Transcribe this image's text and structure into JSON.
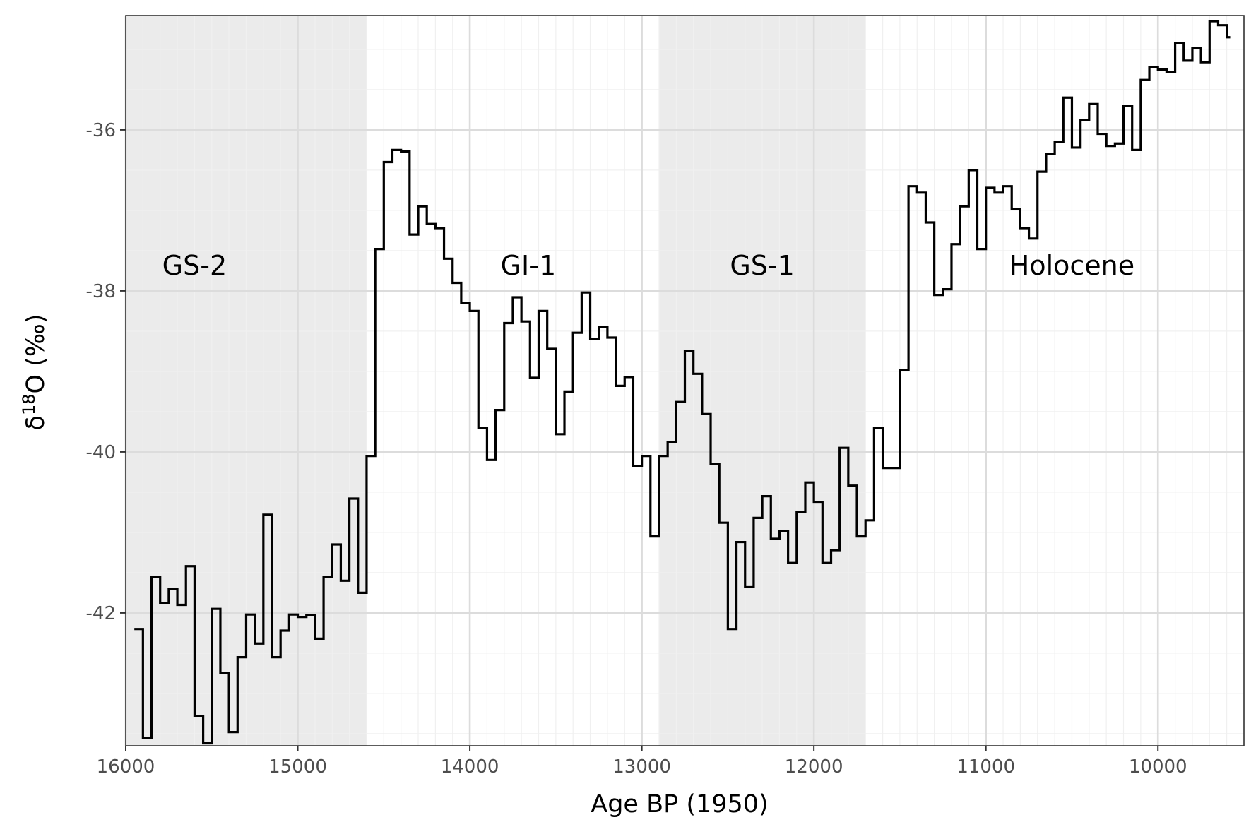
{
  "chart_data": {
    "type": "line",
    "step": true,
    "title": "",
    "xlabel": "Age BP (1950)",
    "ylabel_base": "δ",
    "ylabel_sup": "18",
    "ylabel_rest": "O (‰)",
    "xlim": [
      16000,
      9500
    ],
    "ylim": [
      -43.65,
      -34.58
    ],
    "x_reversed": true,
    "grid": true,
    "x_ticks": [
      16000,
      15000,
      14000,
      13000,
      12000,
      11000,
      10000
    ],
    "x_tick_labels": [
      "16000",
      "15000",
      "14000",
      "13000",
      "12000",
      "11000",
      "10000"
    ],
    "y_ticks": [
      -36,
      -38,
      -40,
      -42
    ],
    "y_tick_labels": [
      "-36",
      "-38",
      "-40",
      "-42"
    ],
    "colors": {
      "line": "#000000",
      "shade": "#ebebeb",
      "grid_major": "#dcdcdc",
      "grid_minor": "#f0f0f0"
    },
    "shaded_periods": [
      {
        "label": "GS-2",
        "start": 16000,
        "end": 14600,
        "shaded": true,
        "label_x": 15600,
        "label_y": -37.8
      },
      {
        "label": "GI-1",
        "start": 14600,
        "end": 12900,
        "shaded": false,
        "label_x": 13660,
        "label_y": -37.8
      },
      {
        "label": "GS-1",
        "start": 12900,
        "end": 11700,
        "shaded": true,
        "label_x": 12300,
        "label_y": -37.8
      },
      {
        "label": "Holocene",
        "start": 11700,
        "end": 9500,
        "shaded": false,
        "label_x": 10500,
        "label_y": -37.8
      }
    ],
    "series": [
      {
        "x": [
          15950,
          15900,
          15850,
          15800,
          15750,
          15700,
          15650,
          15600,
          15550,
          15500,
          15450,
          15400,
          15350,
          15300,
          15250,
          15200,
          15150,
          15100,
          15050,
          15000,
          14950,
          14900,
          14850,
          14800,
          14750,
          14700,
          14650,
          14600,
          14550,
          14500,
          14450,
          14400,
          14350,
          14300,
          14250,
          14200,
          14150,
          14100,
          14050,
          14000,
          13950,
          13900,
          13850,
          13800,
          13750,
          13700,
          13650,
          13600,
          13550,
          13500,
          13450,
          13400,
          13350,
          13300,
          13250,
          13200,
          13150,
          13100,
          13050,
          13000,
          12950,
          12900,
          12850,
          12800,
          12750,
          12700,
          12650,
          12600,
          12550,
          12500,
          12450,
          12400,
          12350,
          12300,
          12250,
          12200,
          12150,
          12100,
          12050,
          12000,
          11950,
          11900,
          11850,
          11800,
          11750,
          11700,
          11650,
          11600,
          11550,
          11500,
          11450,
          11400,
          11350,
          11300,
          11250,
          11200,
          11150,
          11100,
          11050,
          11000,
          10950,
          10900,
          10850,
          10800,
          10750,
          10700,
          10650,
          10600,
          10550,
          10500,
          10450,
          10400,
          10350,
          10300,
          10250,
          10200,
          10150,
          10100,
          10050,
          10000,
          9950,
          9900,
          9850,
          9800,
          9750,
          9700,
          9650,
          9600
        ],
        "y": [
          -42.2,
          -43.55,
          -41.55,
          -41.88,
          -41.7,
          -41.9,
          -41.42,
          -43.28,
          -43.62,
          -41.95,
          -42.75,
          -43.48,
          -42.55,
          -42.02,
          -42.38,
          -40.78,
          -42.55,
          -42.22,
          -42.02,
          -42.05,
          -42.03,
          -42.32,
          -41.55,
          -41.15,
          -41.6,
          -40.58,
          -41.75,
          -40.05,
          -37.48,
          -36.4,
          -36.25,
          -36.27,
          -37.3,
          -36.95,
          -37.17,
          -37.22,
          -37.6,
          -37.9,
          -38.15,
          -38.25,
          -39.7,
          -40.1,
          -39.48,
          -38.4,
          -38.08,
          -38.38,
          -39.08,
          -38.25,
          -38.72,
          -39.78,
          -39.25,
          -38.52,
          -38.02,
          -38.6,
          -38.45,
          -38.58,
          -39.18,
          -39.07,
          -40.18,
          -40.05,
          -41.05,
          -40.05,
          -39.88,
          -39.38,
          -38.75,
          -39.03,
          -39.53,
          -40.15,
          -40.88,
          -42.2,
          -41.12,
          -41.68,
          -40.82,
          -40.55,
          -41.08,
          -40.98,
          -41.38,
          -40.75,
          -40.38,
          -40.62,
          -41.38,
          -41.22,
          -39.95,
          -40.42,
          -41.05,
          -40.85,
          -39.7,
          -40.2,
          -40.2,
          -38.98,
          -36.7,
          -36.78,
          -37.15,
          -38.05,
          -37.98,
          -37.42,
          -36.95,
          -36.5,
          -37.48,
          -36.72,
          -36.78,
          -36.7,
          -36.98,
          -37.22,
          -37.35,
          -36.52,
          -36.3,
          -36.15,
          -35.6,
          -36.22,
          -35.88,
          -35.68,
          -36.05,
          -36.2,
          -36.17,
          -35.7,
          -36.25,
          -35.38,
          -35.22,
          -35.25,
          -35.28,
          -34.92,
          -35.14,
          -34.98,
          -35.16,
          -34.65,
          -34.7,
          -34.85
        ]
      }
    ]
  }
}
